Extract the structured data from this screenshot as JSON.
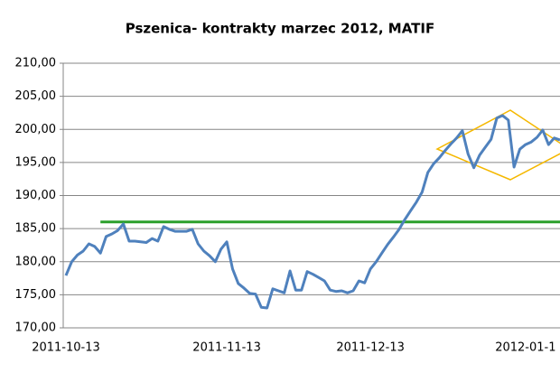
{
  "chart_data": {
    "type": "line",
    "title": "Pszenica- kontrakty marzec 2012, MATIF",
    "categories": [
      "2011-10-13",
      null,
      null,
      null,
      null,
      null,
      null,
      null,
      null,
      null,
      null,
      null,
      null,
      null,
      null,
      null,
      null,
      null,
      null,
      null,
      null,
      null,
      null,
      null,
      null,
      null,
      null,
      null,
      "2011-11-13",
      null,
      null,
      null,
      null,
      null,
      null,
      null,
      null,
      null,
      null,
      null,
      null,
      null,
      null,
      null,
      null,
      null,
      null,
      null,
      null,
      null,
      null,
      null,
      null,
      "2011-12-13",
      null,
      null,
      null,
      null,
      null,
      null,
      null,
      null,
      null,
      null,
      null,
      null,
      null,
      null,
      null,
      null,
      null,
      null,
      null,
      null,
      null,
      null,
      null,
      null,
      null,
      null,
      "2012-01-1",
      null,
      null,
      null,
      null,
      null,
      null
    ],
    "series": [
      {
        "name": "Pszenica",
        "color": "#4f81bd",
        "values": [
          177.9,
          180.0,
          181.0,
          181.6,
          182.7,
          182.3,
          181.3,
          183.8,
          184.2,
          184.7,
          185.7,
          183.1,
          183.1,
          183.0,
          182.9,
          183.5,
          183.1,
          185.3,
          184.9,
          184.6,
          184.6,
          184.6,
          184.9,
          182.7,
          181.6,
          180.9,
          180.0,
          181.9,
          183.0,
          178.9,
          176.7,
          176.0,
          175.2,
          175.1,
          173.1,
          173.0,
          175.9,
          175.6,
          175.3,
          178.6,
          175.7,
          175.7,
          178.5,
          178.1,
          177.6,
          177.1,
          175.7,
          175.5,
          175.6,
          175.3,
          175.6,
          177.1,
          176.8,
          178.9,
          180.0,
          181.3,
          182.6,
          183.7,
          184.9,
          186.4,
          187.7,
          189.0,
          190.5,
          193.5,
          194.8,
          195.7,
          196.8,
          197.8,
          198.7,
          199.8,
          196.3,
          194.2,
          196.1,
          197.3,
          198.5,
          201.7,
          202.1,
          201.4,
          194.3,
          197.0,
          197.7,
          198.1,
          198.8,
          199.9,
          197.7,
          198.7,
          198.4
        ]
      }
    ],
    "support_line": {
      "color": "#2ca02c",
      "values": [
        null,
        null,
        null,
        null,
        null,
        null,
        186,
        186,
        186,
        186,
        186,
        186,
        186,
        186,
        186,
        186,
        186,
        186,
        186,
        186,
        186,
        186,
        186,
        186,
        186,
        186,
        186,
        186,
        186,
        186,
        186,
        186,
        186,
        186,
        186,
        186,
        186,
        186,
        186,
        186,
        186,
        186,
        186,
        186,
        186,
        186,
        186,
        186,
        186,
        186,
        186,
        186,
        186,
        186,
        186,
        186,
        186,
        186,
        186,
        186,
        186,
        186,
        186,
        186,
        186,
        186,
        186,
        186,
        186,
        186,
        186,
        186,
        186,
        186,
        186,
        186,
        186,
        186,
        186,
        186,
        186,
        186,
        186,
        186,
        186,
        186,
        186
      ]
    },
    "ylim": [
      170,
      210
    ],
    "yticks": [
      {
        "value": 170,
        "label": "170,00"
      },
      {
        "value": 175,
        "label": "175,00"
      },
      {
        "value": 180,
        "label": "180,00"
      },
      {
        "value": 185,
        "label": "185,00"
      },
      {
        "value": 190,
        "label": "190,00"
      },
      {
        "value": 195,
        "label": "195,00"
      },
      {
        "value": 200,
        "label": "200,00"
      },
      {
        "value": 205,
        "label": "205,00"
      },
      {
        "value": 210,
        "label": "210,00"
      }
    ],
    "grid": true
  }
}
